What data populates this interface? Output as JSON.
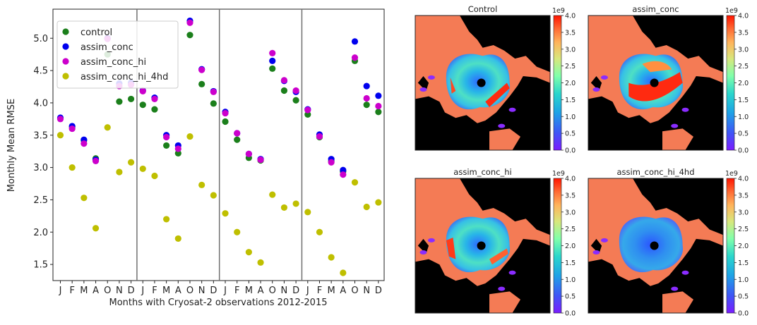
{
  "chart_data": [
    {
      "type": "scatter",
      "xlabel": "Months with Cryosat-2 observations 2012-2015",
      "ylabel": "Monthly Mean RMSE",
      "ylim": [
        1.25,
        5.45
      ],
      "yticks": [
        1.5,
        2.0,
        2.5,
        3.0,
        3.5,
        4.0,
        4.5,
        5.0
      ],
      "grid": false,
      "legend_position": "upper-left",
      "x_tick_labels": [
        "J",
        "F",
        "M",
        "A",
        "O",
        "N",
        "D",
        "J",
        "F",
        "M",
        "A",
        "O",
        "N",
        "D",
        "J",
        "F",
        "M",
        "A",
        "O",
        "N",
        "D",
        "J",
        "F",
        "M",
        "A",
        "O",
        "N",
        "D"
      ],
      "year_separators_after_index": [
        6,
        13,
        20
      ],
      "series": [
        {
          "name": "control",
          "color": "#1b7f1b",
          "values": [
            3.76,
            3.63,
            3.42,
            3.14,
            4.75,
            4.02,
            4.06,
            3.97,
            3.9,
            3.34,
            3.22,
            5.05,
            4.29,
            3.99,
            3.71,
            3.43,
            3.15,
            3.11,
            4.53,
            4.19,
            4.04,
            3.82,
            3.47,
            3.1,
            2.94,
            4.65,
            3.97,
            3.86
          ]
        },
        {
          "name": "assim_conc",
          "color": "#0000ee",
          "values": [
            3.77,
            3.64,
            3.43,
            3.12,
            5.0,
            4.3,
            4.31,
            4.19,
            4.08,
            3.5,
            3.34,
            5.27,
            4.52,
            4.18,
            3.86,
            3.53,
            3.21,
            3.13,
            4.65,
            4.34,
            4.17,
            3.9,
            3.51,
            3.13,
            2.96,
            4.95,
            4.26,
            4.11
          ]
        },
        {
          "name": "assim_conc_hi",
          "color": "#cc00cc",
          "values": [
            3.75,
            3.6,
            3.37,
            3.1,
            4.99,
            4.26,
            4.28,
            4.18,
            4.06,
            3.47,
            3.29,
            5.24,
            4.51,
            4.17,
            3.84,
            3.53,
            3.21,
            3.12,
            4.77,
            4.35,
            4.19,
            3.89,
            3.48,
            3.08,
            2.89,
            4.7,
            4.07,
            3.95
          ]
        },
        {
          "name": "assim_conc_hi_4hd",
          "color": "#bfbf00",
          "values": [
            3.5,
            3.0,
            2.53,
            2.06,
            3.62,
            2.93,
            3.08,
            2.98,
            2.87,
            2.2,
            1.9,
            3.48,
            2.73,
            2.57,
            2.29,
            2.0,
            1.69,
            1.53,
            2.58,
            2.38,
            2.44,
            2.31,
            2.0,
            1.61,
            1.37,
            2.77,
            2.39,
            2.46
          ]
        }
      ]
    },
    {
      "type": "heatmap",
      "panels": [
        {
          "title": "Control",
          "pattern": "control"
        },
        {
          "title": "assim_conc",
          "pattern": "assim_conc"
        },
        {
          "title": "assim_conc_hi",
          "pattern": "assim_conc_hi"
        },
        {
          "title": "assim_conc_hi_4hd",
          "pattern": "assim_conc_hi_4hd"
        }
      ],
      "colorbar": {
        "exponent_label": "1e9",
        "range": [
          0.0,
          4.0
        ],
        "ticks": [
          "0.0",
          "0.5",
          "1.0",
          "1.5",
          "2.0",
          "2.5",
          "3.0",
          "3.5",
          "4.0"
        ]
      },
      "colors": {
        "land": "#000000",
        "ocean_fill": "#f47b55"
      }
    }
  ]
}
